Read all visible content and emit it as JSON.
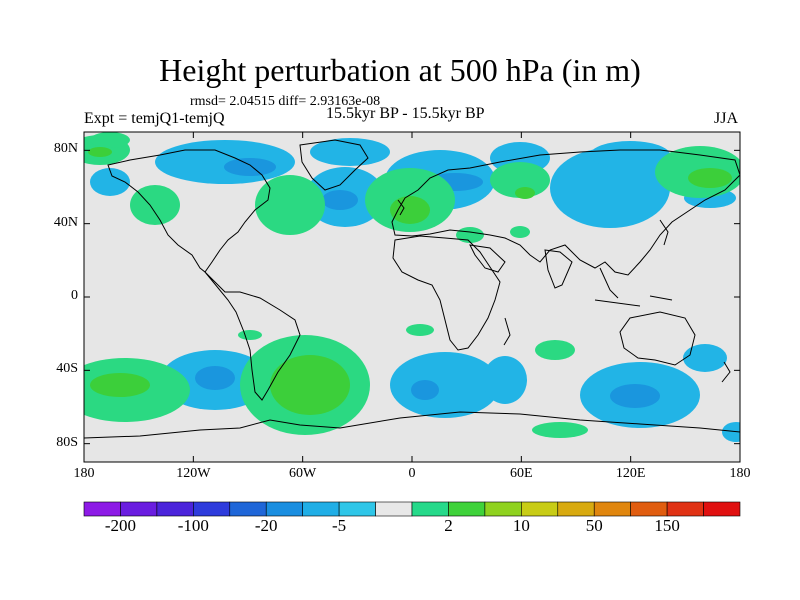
{
  "title": "Height perturbation at 500 hPa (in m)",
  "stats": "rmsd= 2.04515 diff= 2.93163e-08",
  "expt": "Expt = temjQ1-temjQ",
  "period": "15.5kyr BP - 15.5kyr BP",
  "season": "JJA",
  "y_ticks": [
    {
      "label": "80N",
      "lat": 80
    },
    {
      "label": "40N",
      "lat": 40
    },
    {
      "label": "0",
      "lat": 0
    },
    {
      "label": "40S",
      "lat": -40
    },
    {
      "label": "80S",
      "lat": -80
    }
  ],
  "x_ticks": [
    {
      "label": "180",
      "lon": -180
    },
    {
      "label": "120W",
      "lon": -120
    },
    {
      "label": "60W",
      "lon": -60
    },
    {
      "label": "0",
      "lon": 0
    },
    {
      "label": "60E",
      "lon": 60
    },
    {
      "label": "120E",
      "lon": 120
    },
    {
      "label": "180",
      "lon": 180
    }
  ],
  "colorbar": {
    "colors": [
      "#8d1ae6",
      "#6a1de0",
      "#4b24db",
      "#2e3bdc",
      "#1f66d8",
      "#1a8ee0",
      "#20aee6",
      "#2fc6e8",
      "#e8e8e8",
      "#26d98a",
      "#3fd23a",
      "#8fd21f",
      "#c8cc16",
      "#d8aa10",
      "#e0860e",
      "#e05d10",
      "#e03214",
      "#e01010"
    ],
    "labels": [
      "-200",
      "-100",
      "-20",
      "-5",
      "2",
      "10",
      "50",
      "150"
    ]
  },
  "fill_colors": {
    "ocean_background": "#e6e6e6",
    "light_blue": "#22b4e6",
    "mid_blue": "#1a96de",
    "light_green": "#2bd982",
    "green": "#3ccf3a",
    "coast": "#000000"
  }
}
